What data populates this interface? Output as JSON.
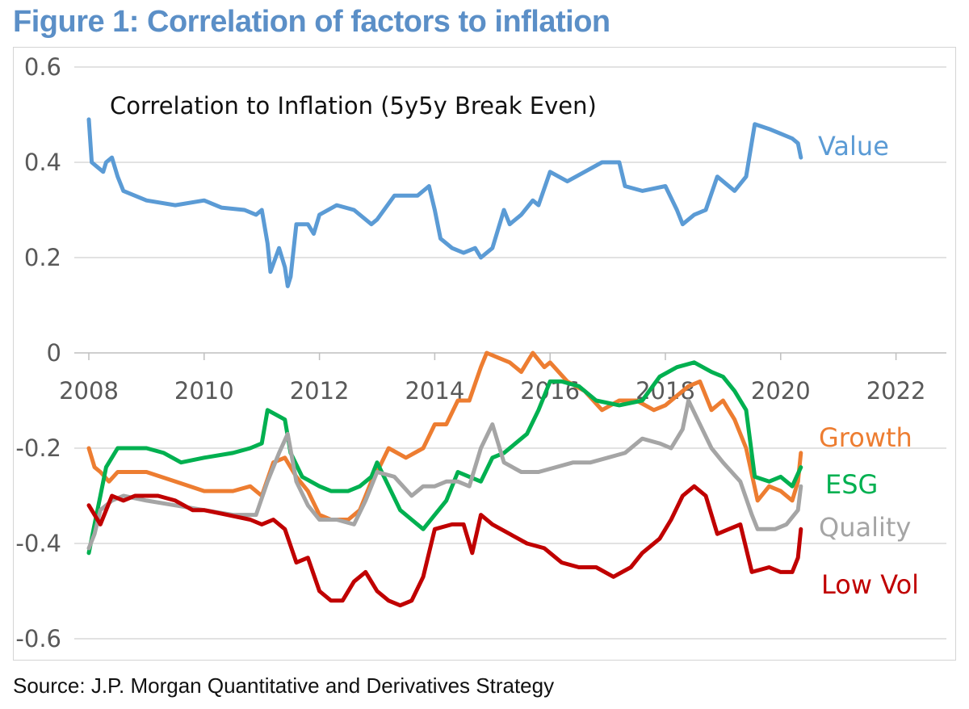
{
  "figure_title": "Figure 1: Correlation of factors to inflation",
  "source": "Source: J.P. Morgan Quantitative and Derivatives Strategy",
  "chart_data": {
    "type": "line",
    "title": "Correlation to Inflation (5y5y Break Even)",
    "xlabel": "",
    "ylabel": "",
    "xlim": [
      2008,
      2023
    ],
    "ylim": [
      -0.6,
      0.6
    ],
    "x_ticks": [
      "2008",
      "2010",
      "2012",
      "2014",
      "2016",
      "2018",
      "2020",
      "2022"
    ],
    "y_ticks": [
      "0.6",
      "0.4",
      "0.2",
      "0",
      "-0.2",
      "-0.4",
      "-0.6"
    ],
    "grid": "horizontal",
    "series": [
      {
        "name": "Value",
        "color": "#5b9bd5",
        "points": [
          [
            2008.0,
            0.49
          ],
          [
            2008.05,
            0.4
          ],
          [
            2008.15,
            0.39
          ],
          [
            2008.25,
            0.38
          ],
          [
            2008.3,
            0.4
          ],
          [
            2008.4,
            0.41
          ],
          [
            2008.5,
            0.37
          ],
          [
            2008.6,
            0.34
          ],
          [
            2009.0,
            0.32
          ],
          [
            2009.5,
            0.31
          ],
          [
            2010.0,
            0.32
          ],
          [
            2010.3,
            0.305
          ],
          [
            2010.7,
            0.3
          ],
          [
            2010.9,
            0.29
          ],
          [
            2011.0,
            0.3
          ],
          [
            2011.1,
            0.23
          ],
          [
            2011.15,
            0.17
          ],
          [
            2011.3,
            0.22
          ],
          [
            2011.4,
            0.18
          ],
          [
            2011.45,
            0.14
          ],
          [
            2011.5,
            0.16
          ],
          [
            2011.6,
            0.27
          ],
          [
            2011.8,
            0.27
          ],
          [
            2011.9,
            0.25
          ],
          [
            2012.0,
            0.29
          ],
          [
            2012.3,
            0.31
          ],
          [
            2012.6,
            0.3
          ],
          [
            2012.9,
            0.27
          ],
          [
            2013.0,
            0.28
          ],
          [
            2013.3,
            0.33
          ],
          [
            2013.7,
            0.33
          ],
          [
            2013.9,
            0.35
          ],
          [
            2014.0,
            0.3
          ],
          [
            2014.1,
            0.24
          ],
          [
            2014.3,
            0.22
          ],
          [
            2014.5,
            0.21
          ],
          [
            2014.7,
            0.22
          ],
          [
            2014.8,
            0.2
          ],
          [
            2015.0,
            0.22
          ],
          [
            2015.2,
            0.3
          ],
          [
            2015.3,
            0.27
          ],
          [
            2015.5,
            0.29
          ],
          [
            2015.7,
            0.32
          ],
          [
            2015.8,
            0.31
          ],
          [
            2016.0,
            0.38
          ],
          [
            2016.3,
            0.36
          ],
          [
            2016.6,
            0.38
          ],
          [
            2016.9,
            0.4
          ],
          [
            2017.2,
            0.4
          ],
          [
            2017.3,
            0.35
          ],
          [
            2017.6,
            0.34
          ],
          [
            2018.0,
            0.35
          ],
          [
            2018.2,
            0.3
          ],
          [
            2018.3,
            0.27
          ],
          [
            2018.5,
            0.29
          ],
          [
            2018.7,
            0.3
          ],
          [
            2018.9,
            0.37
          ],
          [
            2019.0,
            0.36
          ],
          [
            2019.2,
            0.34
          ],
          [
            2019.4,
            0.37
          ],
          [
            2019.55,
            0.48
          ],
          [
            2019.8,
            0.47
          ],
          [
            2020.0,
            0.46
          ],
          [
            2020.2,
            0.45
          ],
          [
            2020.3,
            0.44
          ],
          [
            2020.35,
            0.41
          ]
        ]
      },
      {
        "name": "Growth",
        "color": "#ed7d31",
        "points": [
          [
            2008.0,
            -0.2
          ],
          [
            2008.1,
            -0.24
          ],
          [
            2008.2,
            -0.25
          ],
          [
            2008.35,
            -0.27
          ],
          [
            2008.5,
            -0.25
          ],
          [
            2009.0,
            -0.25
          ],
          [
            2009.5,
            -0.27
          ],
          [
            2010.0,
            -0.29
          ],
          [
            2010.5,
            -0.29
          ],
          [
            2010.8,
            -0.28
          ],
          [
            2011.0,
            -0.3
          ],
          [
            2011.2,
            -0.23
          ],
          [
            2011.4,
            -0.22
          ],
          [
            2011.6,
            -0.26
          ],
          [
            2011.8,
            -0.29
          ],
          [
            2012.0,
            -0.34
          ],
          [
            2012.2,
            -0.35
          ],
          [
            2012.5,
            -0.35
          ],
          [
            2012.7,
            -0.33
          ],
          [
            2012.9,
            -0.27
          ],
          [
            2013.0,
            -0.25
          ],
          [
            2013.2,
            -0.2
          ],
          [
            2013.5,
            -0.22
          ],
          [
            2013.8,
            -0.2
          ],
          [
            2014.0,
            -0.15
          ],
          [
            2014.2,
            -0.15
          ],
          [
            2014.4,
            -0.1
          ],
          [
            2014.6,
            -0.1
          ],
          [
            2014.8,
            -0.03
          ],
          [
            2014.9,
            0.0
          ],
          [
            2015.1,
            -0.01
          ],
          [
            2015.3,
            -0.02
          ],
          [
            2015.5,
            -0.04
          ],
          [
            2015.7,
            0.0
          ],
          [
            2015.9,
            -0.03
          ],
          [
            2016.0,
            -0.02
          ],
          [
            2016.3,
            -0.06
          ],
          [
            2016.6,
            -0.08
          ],
          [
            2016.9,
            -0.12
          ],
          [
            2017.2,
            -0.1
          ],
          [
            2017.5,
            -0.1
          ],
          [
            2017.8,
            -0.12
          ],
          [
            2018.0,
            -0.11
          ],
          [
            2018.2,
            -0.09
          ],
          [
            2018.4,
            -0.07
          ],
          [
            2018.6,
            -0.06
          ],
          [
            2018.8,
            -0.12
          ],
          [
            2019.0,
            -0.1
          ],
          [
            2019.2,
            -0.14
          ],
          [
            2019.4,
            -0.2
          ],
          [
            2019.6,
            -0.31
          ],
          [
            2019.8,
            -0.28
          ],
          [
            2020.0,
            -0.29
          ],
          [
            2020.2,
            -0.31
          ],
          [
            2020.3,
            -0.27
          ],
          [
            2020.35,
            -0.21
          ]
        ]
      },
      {
        "name": "ESG",
        "color": "#00b050",
        "points": [
          [
            2008.0,
            -0.42
          ],
          [
            2008.1,
            -0.36
          ],
          [
            2008.2,
            -0.3
          ],
          [
            2008.3,
            -0.24
          ],
          [
            2008.5,
            -0.2
          ],
          [
            2009.0,
            -0.2
          ],
          [
            2009.3,
            -0.21
          ],
          [
            2009.6,
            -0.23
          ],
          [
            2010.0,
            -0.22
          ],
          [
            2010.5,
            -0.21
          ],
          [
            2010.8,
            -0.2
          ],
          [
            2011.0,
            -0.19
          ],
          [
            2011.1,
            -0.12
          ],
          [
            2011.25,
            -0.13
          ],
          [
            2011.4,
            -0.14
          ],
          [
            2011.5,
            -0.21
          ],
          [
            2011.7,
            -0.26
          ],
          [
            2012.0,
            -0.28
          ],
          [
            2012.2,
            -0.29
          ],
          [
            2012.5,
            -0.29
          ],
          [
            2012.7,
            -0.28
          ],
          [
            2012.9,
            -0.26
          ],
          [
            2013.0,
            -0.23
          ],
          [
            2013.2,
            -0.28
          ],
          [
            2013.4,
            -0.33
          ],
          [
            2013.6,
            -0.35
          ],
          [
            2013.8,
            -0.37
          ],
          [
            2014.0,
            -0.34
          ],
          [
            2014.2,
            -0.31
          ],
          [
            2014.4,
            -0.25
          ],
          [
            2014.6,
            -0.26
          ],
          [
            2014.8,
            -0.27
          ],
          [
            2015.0,
            -0.22
          ],
          [
            2015.2,
            -0.21
          ],
          [
            2015.4,
            -0.19
          ],
          [
            2015.6,
            -0.17
          ],
          [
            2015.8,
            -0.12
          ],
          [
            2016.0,
            -0.06
          ],
          [
            2016.2,
            -0.06
          ],
          [
            2016.5,
            -0.07
          ],
          [
            2016.8,
            -0.1
          ],
          [
            2017.2,
            -0.11
          ],
          [
            2017.6,
            -0.1
          ],
          [
            2017.9,
            -0.05
          ],
          [
            2018.2,
            -0.03
          ],
          [
            2018.5,
            -0.02
          ],
          [
            2018.8,
            -0.04
          ],
          [
            2019.0,
            -0.05
          ],
          [
            2019.2,
            -0.08
          ],
          [
            2019.4,
            -0.12
          ],
          [
            2019.55,
            -0.26
          ],
          [
            2019.8,
            -0.27
          ],
          [
            2020.0,
            -0.26
          ],
          [
            2020.2,
            -0.28
          ],
          [
            2020.35,
            -0.24
          ]
        ]
      },
      {
        "name": "Quality",
        "color": "#a5a5a5",
        "points": [
          [
            2008.0,
            -0.41
          ],
          [
            2008.1,
            -0.38
          ],
          [
            2008.2,
            -0.33
          ],
          [
            2008.4,
            -0.31
          ],
          [
            2008.6,
            -0.3
          ],
          [
            2009.0,
            -0.31
          ],
          [
            2009.5,
            -0.32
          ],
          [
            2010.0,
            -0.33
          ],
          [
            2010.5,
            -0.34
          ],
          [
            2010.9,
            -0.34
          ],
          [
            2011.1,
            -0.27
          ],
          [
            2011.3,
            -0.21
          ],
          [
            2011.45,
            -0.17
          ],
          [
            2011.6,
            -0.27
          ],
          [
            2011.8,
            -0.32
          ],
          [
            2012.0,
            -0.35
          ],
          [
            2012.3,
            -0.35
          ],
          [
            2012.6,
            -0.36
          ],
          [
            2012.8,
            -0.31
          ],
          [
            2013.0,
            -0.25
          ],
          [
            2013.3,
            -0.26
          ],
          [
            2013.6,
            -0.3
          ],
          [
            2013.8,
            -0.28
          ],
          [
            2014.0,
            -0.28
          ],
          [
            2014.2,
            -0.27
          ],
          [
            2014.4,
            -0.27
          ],
          [
            2014.6,
            -0.28
          ],
          [
            2014.8,
            -0.2
          ],
          [
            2015.0,
            -0.15
          ],
          [
            2015.2,
            -0.23
          ],
          [
            2015.5,
            -0.25
          ],
          [
            2015.8,
            -0.25
          ],
          [
            2016.1,
            -0.24
          ],
          [
            2016.4,
            -0.23
          ],
          [
            2016.7,
            -0.23
          ],
          [
            2017.0,
            -0.22
          ],
          [
            2017.3,
            -0.21
          ],
          [
            2017.6,
            -0.18
          ],
          [
            2017.9,
            -0.19
          ],
          [
            2018.1,
            -0.2
          ],
          [
            2018.3,
            -0.16
          ],
          [
            2018.4,
            -0.1
          ],
          [
            2018.6,
            -0.15
          ],
          [
            2018.8,
            -0.2
          ],
          [
            2019.0,
            -0.23
          ],
          [
            2019.3,
            -0.27
          ],
          [
            2019.5,
            -0.34
          ],
          [
            2019.6,
            -0.37
          ],
          [
            2019.9,
            -0.37
          ],
          [
            2020.1,
            -0.36
          ],
          [
            2020.3,
            -0.33
          ],
          [
            2020.35,
            -0.28
          ]
        ]
      },
      {
        "name": "Low Vol",
        "color": "#c00000",
        "points": [
          [
            2008.0,
            -0.32
          ],
          [
            2008.2,
            -0.36
          ],
          [
            2008.4,
            -0.3
          ],
          [
            2008.6,
            -0.31
          ],
          [
            2008.8,
            -0.3
          ],
          [
            2009.2,
            -0.3
          ],
          [
            2009.5,
            -0.31
          ],
          [
            2009.8,
            -0.33
          ],
          [
            2010.0,
            -0.33
          ],
          [
            2010.4,
            -0.34
          ],
          [
            2010.8,
            -0.35
          ],
          [
            2011.0,
            -0.36
          ],
          [
            2011.2,
            -0.35
          ],
          [
            2011.4,
            -0.37
          ],
          [
            2011.6,
            -0.44
          ],
          [
            2011.8,
            -0.43
          ],
          [
            2012.0,
            -0.5
          ],
          [
            2012.2,
            -0.52
          ],
          [
            2012.4,
            -0.52
          ],
          [
            2012.6,
            -0.48
          ],
          [
            2012.8,
            -0.46
          ],
          [
            2013.0,
            -0.5
          ],
          [
            2013.2,
            -0.52
          ],
          [
            2013.4,
            -0.53
          ],
          [
            2013.6,
            -0.52
          ],
          [
            2013.8,
            -0.47
          ],
          [
            2014.0,
            -0.37
          ],
          [
            2014.3,
            -0.36
          ],
          [
            2014.5,
            -0.36
          ],
          [
            2014.65,
            -0.42
          ],
          [
            2014.8,
            -0.34
          ],
          [
            2015.0,
            -0.36
          ],
          [
            2015.3,
            -0.38
          ],
          [
            2015.6,
            -0.4
          ],
          [
            2015.9,
            -0.41
          ],
          [
            2016.2,
            -0.44
          ],
          [
            2016.5,
            -0.45
          ],
          [
            2016.8,
            -0.45
          ],
          [
            2017.1,
            -0.47
          ],
          [
            2017.4,
            -0.45
          ],
          [
            2017.6,
            -0.42
          ],
          [
            2017.9,
            -0.39
          ],
          [
            2018.1,
            -0.35
          ],
          [
            2018.3,
            -0.3
          ],
          [
            2018.5,
            -0.28
          ],
          [
            2018.7,
            -0.3
          ],
          [
            2018.9,
            -0.38
          ],
          [
            2019.1,
            -0.37
          ],
          [
            2019.3,
            -0.36
          ],
          [
            2019.5,
            -0.46
          ],
          [
            2019.8,
            -0.45
          ],
          [
            2020.0,
            -0.46
          ],
          [
            2020.2,
            -0.46
          ],
          [
            2020.3,
            -0.43
          ],
          [
            2020.35,
            -0.37
          ]
        ]
      }
    ]
  }
}
